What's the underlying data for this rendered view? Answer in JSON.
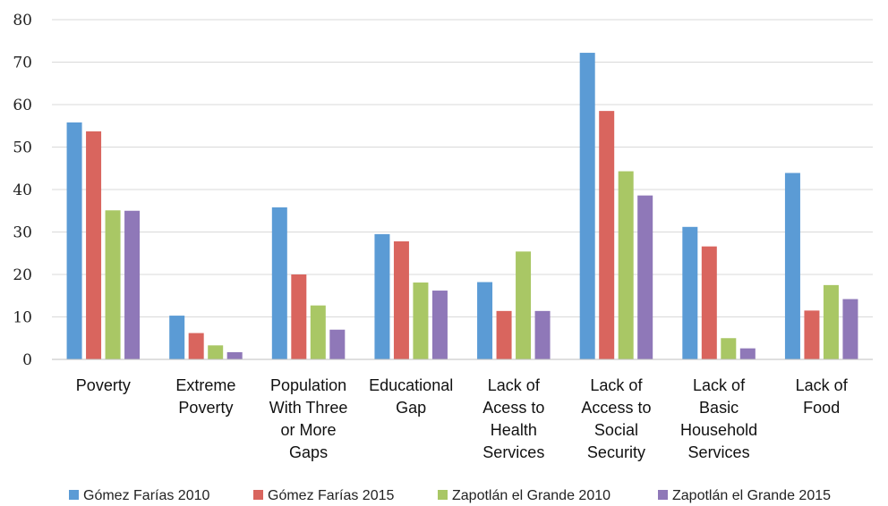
{
  "chart_data": {
    "type": "bar",
    "categories": [
      [
        "Poverty"
      ],
      [
        "Extreme",
        "Poverty"
      ],
      [
        "Population",
        "With Three",
        "or More",
        "Gaps"
      ],
      [
        "Educational",
        "Gap"
      ],
      [
        "Lack of",
        "Acess to",
        "Health",
        "Services"
      ],
      [
        "Lack of",
        "Access to",
        "Social",
        "Security"
      ],
      [
        "Lack of",
        "Basic",
        "Household",
        "Services"
      ],
      [
        "Lack of",
        "Food"
      ]
    ],
    "series": [
      {
        "name": "Gómez Farías 2010",
        "color": "#5b9bd5",
        "values": [
          55.8,
          10.3,
          35.8,
          29.5,
          18.2,
          72.2,
          31.2,
          43.9
        ]
      },
      {
        "name": "Gómez Farías 2015",
        "color": "#d9655e",
        "values": [
          53.7,
          6.2,
          20.0,
          27.8,
          11.4,
          58.5,
          26.6,
          11.5
        ]
      },
      {
        "name": "Zapotlán el Grande 2010",
        "color": "#a9c765",
        "values": [
          35.1,
          3.3,
          12.7,
          18.1,
          25.4,
          44.3,
          5.0,
          17.5
        ]
      },
      {
        "name": "Zapotlán el Grande 2015",
        "color": "#8f78b8",
        "values": [
          35.0,
          1.7,
          7.0,
          16.2,
          11.4,
          38.6,
          2.6,
          14.2
        ]
      }
    ],
    "yticks": [
      "0",
      "10",
      "20",
      "30",
      "40",
      "50",
      "60",
      "70",
      "80"
    ],
    "ylim": [
      0,
      80
    ],
    "grid": true,
    "legend_position": "bottom"
  }
}
